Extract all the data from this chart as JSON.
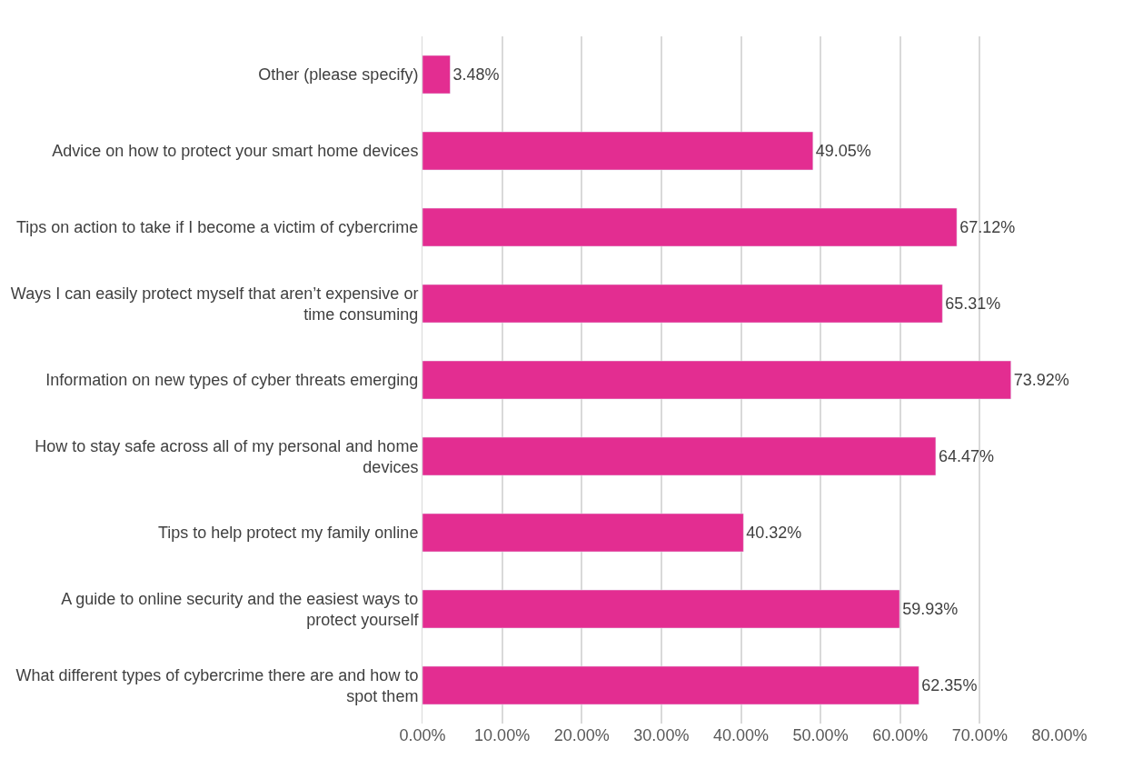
{
  "chart_data": {
    "type": "bar",
    "orientation": "horizontal",
    "categories": [
      "Other (please specify)",
      "Advice on how to protect your smart home devices",
      "Tips on action to take if I become a victim of cybercrime",
      "Ways I can easily protect myself that aren’t expensive or time consuming",
      "Information on new types of cyber threats emerging",
      "How to stay safe across all of my personal and home devices",
      "Tips to help protect my family online",
      "A guide to online security and the easiest ways to protect yourself",
      "What different types of cybercrime there are and how to spot them"
    ],
    "values": [
      3.48,
      49.05,
      67.12,
      65.31,
      73.92,
      64.47,
      40.32,
      59.93,
      62.35
    ],
    "value_labels": [
      "3.48%",
      "49.05%",
      "67.12%",
      "65.31%",
      "73.92%",
      "64.47%",
      "40.32%",
      "59.93%",
      "62.35%"
    ],
    "color": "#e32d91",
    "xlim": [
      0,
      80
    ],
    "xticks": [
      {
        "value": 0,
        "label": "0.00%"
      },
      {
        "value": 10,
        "label": "10.00%"
      },
      {
        "value": 20,
        "label": "20.00%"
      },
      {
        "value": 30,
        "label": "30.00%"
      },
      {
        "value": 40,
        "label": "40.00%"
      },
      {
        "value": 50,
        "label": "50.00%"
      },
      {
        "value": 60,
        "label": "60.00%"
      },
      {
        "value": 70,
        "label": "70.00%"
      },
      {
        "value": 80,
        "label": "80.00%"
      }
    ],
    "grid": "x"
  }
}
